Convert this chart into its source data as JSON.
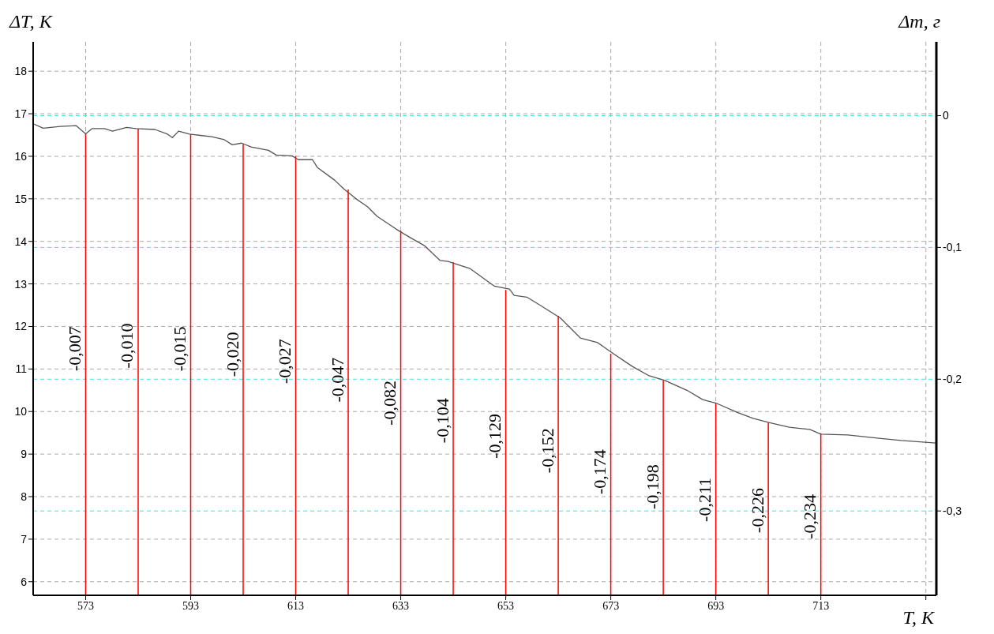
{
  "chart_data": {
    "type": "line",
    "xlabel": "T, К",
    "ylabel": "ΔT, К",
    "y2label": "Δm, г",
    "xlim": [
      563,
      735
    ],
    "ylim": [
      5.68,
      18.69
    ],
    "y2lim": [
      -0.364,
      0.056
    ],
    "xticks": [
      573,
      593,
      613,
      633,
      653,
      673,
      693,
      713,
      {
        "value": 733,
        "label": null
      }
    ],
    "yticks": [
      6,
      7,
      8,
      9,
      10,
      11,
      12,
      13,
      14,
      15,
      16,
      17,
      18
    ],
    "y2ticks": [
      {
        "value": 0,
        "label": "0"
      },
      {
        "value": -0.1,
        "label": "-0,1"
      },
      {
        "value": -0.2,
        "label": "-0,2"
      },
      {
        "value": -0.3,
        "label": "-0,3"
      }
    ],
    "grid": true,
    "marker": "none",
    "line_style": "solid",
    "series": [
      {
        "color": "#555555",
        "x": [
          563.1,
          564.9,
          568.2,
          571.2,
          573,
          574.2,
          576.6,
          578.1,
          580.8,
          582.6,
          586.2,
          588.6,
          589.5,
          590.7,
          592.8,
          597,
          599.4,
          600.9,
          602.7,
          604.5,
          607.8,
          609.3,
          612.3,
          613.5,
          616.2,
          617.1,
          620.4,
          622.2,
          624.6,
          626.7,
          628.5,
          632.1,
          634.8,
          637.5,
          640.5,
          642,
          646.2,
          650.8,
          653.7,
          654.6,
          657,
          659.4,
          663.4,
          667.2,
          670.5,
          673.5,
          677.1,
          680.3,
          683.3,
          687.5,
          690.5,
          693.2,
          697.1,
          700.1,
          703.1,
          707,
          710.9,
          713,
          718.1,
          724.1,
          728.3,
          734.9
        ],
        "values": [
          16.76,
          16.66,
          16.7,
          16.72,
          16.53,
          16.65,
          16.65,
          16.59,
          16.68,
          16.65,
          16.63,
          16.52,
          16.44,
          16.59,
          16.52,
          16.46,
          16.39,
          16.27,
          16.31,
          16.22,
          16.14,
          16.03,
          16.01,
          15.92,
          15.92,
          15.74,
          15.44,
          15.23,
          14.99,
          14.81,
          14.59,
          14.29,
          14.09,
          13.9,
          13.55,
          13.53,
          13.36,
          12.95,
          12.88,
          12.73,
          12.69,
          12.51,
          12.2,
          11.73,
          11.62,
          11.36,
          11.06,
          10.84,
          10.73,
          10.5,
          10.28,
          10.19,
          9.98,
          9.84,
          9.74,
          9.63,
          9.58,
          9.47,
          9.45,
          9.37,
          9.32,
          9.26
        ]
      },
      {
        "type": "bar",
        "color": "#ff0000",
        "x": [
          573,
          583,
          593,
          603,
          613,
          623,
          633,
          643,
          653,
          663,
          673,
          683,
          693,
          703,
          713
        ],
        "values": [
          16.53,
          16.65,
          16.52,
          16.29,
          16.0,
          15.22,
          14.25,
          13.51,
          12.86,
          12.25,
          11.36,
          10.73,
          10.19,
          9.74,
          9.48
        ]
      }
    ],
    "annotations": [
      "-0,007",
      "-0,010",
      "-0,015",
      "-0,020",
      "-0,027",
      "-0,047",
      "-0,082",
      "-0,104",
      "-0,129",
      "-0,152",
      "-0,174",
      "-0,198",
      "-0,211",
      "-0,226",
      "-0,234"
    ]
  }
}
